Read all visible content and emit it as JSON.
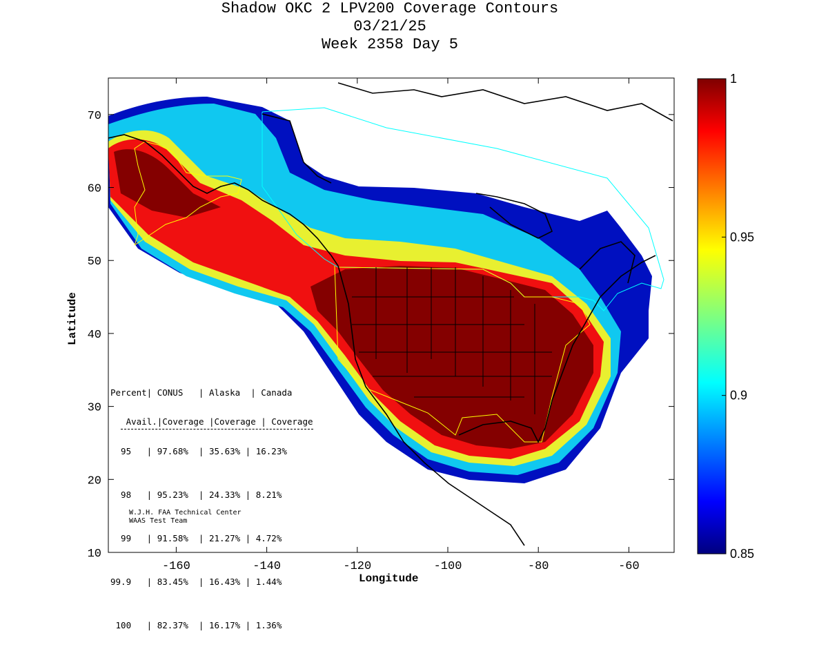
{
  "title": {
    "line1": "Shadow OKC 2 LPV200 Coverage Contours",
    "line2": "03/21/25",
    "line3": "Week 2358 Day 5"
  },
  "axes": {
    "xlabel": "Longitude",
    "ylabel": "Latitude",
    "xlim": [
      -175,
      -50
    ],
    "ylim": [
      10,
      75
    ],
    "xticks": [
      -160,
      -140,
      -120,
      -100,
      -80,
      -60
    ],
    "yticks": [
      10,
      20,
      30,
      40,
      50,
      60,
      70
    ]
  },
  "colorbar": {
    "min": 0.85,
    "max": 1,
    "ticks": [
      "1",
      "0.95",
      "0.9",
      "0.85"
    ],
    "tick_values": [
      1,
      0.95,
      0.9,
      0.85
    ],
    "colormap": "jet"
  },
  "stats_table": {
    "header1": "Percent| CONUS   | Alaska  | Canada",
    "header2": " Avail.|Coverage |Coverage | Coverage",
    "rows": [
      "  95   | 97.68%  | 35.63% | 16.23%",
      "  98   | 95.23%  | 24.33% | 8.21%",
      "  99   | 91.58%  | 21.27% | 4.72%",
      "99.9   | 83.45%  | 16.43% | 1.44%",
      " 100   | 82.37%  | 16.17% | 1.36%"
    ]
  },
  "credit": {
    "line1": "W.J.H. FAA Technical Center",
    "line2": "WAAS Test Team"
  },
  "colors": {
    "coverage_max": "#7f0000",
    "coverage_high": "#ff0000",
    "coverage_mid": "#00ffff",
    "coverage_low": "#00007f",
    "canada_boundary": "#00ffff",
    "conus_boundary": "#ffff00"
  }
}
